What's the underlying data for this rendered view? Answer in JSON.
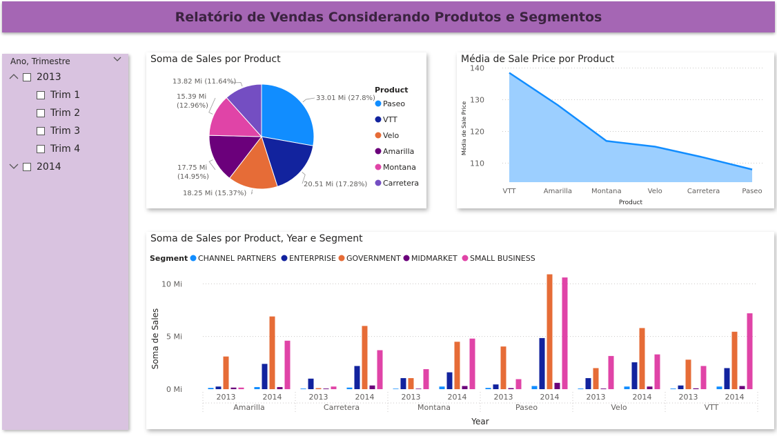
{
  "header": {
    "title": "Relatório de Vendas Considerando Produtos e Segmentos"
  },
  "slicer": {
    "title": "Ano, Trimestre",
    "years": [
      {
        "label": "2013",
        "expanded": true,
        "quarters": [
          "Trim 1",
          "Trim 2",
          "Trim 3",
          "Trim 4"
        ]
      },
      {
        "label": "2014",
        "expanded": false,
        "quarters": []
      }
    ]
  },
  "pie": {
    "title": "Soma de Sales por Product",
    "legend_title": "Product",
    "labels": [
      "33.01 Mi (27.8%)",
      "20.51 Mi (17.28%)",
      "18.25 Mi (15.37%)",
      "17.75 Mi (14.95%)",
      "15.39 Mi (12.96%)",
      "13.82 Mi (11.64%)"
    ]
  },
  "line": {
    "title": "Média de Sale Price por Product"
  },
  "bar": {
    "title": "Soma de Sales por Product, Year e Segment",
    "legend_title": "Segment"
  },
  "chart_data": [
    {
      "type": "pie",
      "title": "Soma de Sales por Product",
      "legend_title": "Product",
      "categories": [
        "Paseo",
        "VTT",
        "Velo",
        "Amarilla",
        "Montana",
        "Carretera"
      ],
      "values": [
        33.01,
        20.51,
        18.25,
        17.75,
        15.39,
        13.82
      ],
      "percentages": [
        27.8,
        17.28,
        15.37,
        14.95,
        12.96,
        11.64
      ],
      "unit": "Mi",
      "colors": [
        "#118dff",
        "#12239e",
        "#e66c37",
        "#6b007b",
        "#e044a7",
        "#744ec2"
      ],
      "legend_position": "right"
    },
    {
      "type": "area",
      "title": "Média de Sale Price por Product",
      "xlabel": "Product",
      "ylabel": "Média de Sale Price",
      "categories": [
        "VTT",
        "Amarilla",
        "Montana",
        "Velo",
        "Carretera",
        "Paseo"
      ],
      "values": [
        138.5,
        128.3,
        117.0,
        115.2,
        111.8,
        108.0
      ],
      "ylim": [
        104,
        141
      ],
      "yticks": [
        110,
        120,
        130,
        140
      ],
      "grid": true,
      "color": "#118dff"
    },
    {
      "type": "bar",
      "title": "Soma de Sales por Product, Year e Segment",
      "xlabel": "Year",
      "ylabel": "Soma de Sales",
      "legend_title": "Segment",
      "legend_position": "top-left",
      "groups": [
        "Amarilla",
        "Carretera",
        "Montana",
        "Paseo",
        "Velo",
        "VTT"
      ],
      "years": [
        "2013",
        "2014"
      ],
      "ylim": [
        0,
        11
      ],
      "yticks": [
        {
          "v": 0,
          "label": "0 Mi"
        },
        {
          "v": 5,
          "label": "5 Mi"
        },
        {
          "v": 10,
          "label": "10 Mi"
        }
      ],
      "grid": true,
      "series": [
        {
          "name": "CHANNEL PARTNERS",
          "color": "#118dff",
          "values": [
            0.12,
            0.2,
            0.06,
            0.15,
            0.05,
            0.25,
            0.12,
            0.3,
            0.06,
            0.25,
            0.06,
            0.25
          ]
        },
        {
          "name": "ENTERPRISE",
          "color": "#12239e",
          "values": [
            0.25,
            2.4,
            1.0,
            2.2,
            1.05,
            1.6,
            0.45,
            4.85,
            1.05,
            2.55,
            0.35,
            2.0
          ]
        },
        {
          "name": "GOVERNMENT",
          "color": "#e66c37",
          "values": [
            3.1,
            6.9,
            0.1,
            6.0,
            1.05,
            4.5,
            4.05,
            10.9,
            2.0,
            5.8,
            2.8,
            5.45
          ]
        },
        {
          "name": "MIDMARKET",
          "color": "#6b007b",
          "values": [
            0.15,
            0.2,
            0.06,
            0.35,
            0.05,
            0.3,
            0.1,
            0.6,
            0.06,
            0.25,
            0.08,
            0.3
          ]
        },
        {
          "name": "SMALL BUSINESS",
          "color": "#e044a7",
          "values": [
            0.15,
            4.6,
            0.25,
            3.7,
            1.9,
            4.8,
            0.95,
            10.6,
            3.15,
            3.3,
            2.2,
            7.2
          ]
        }
      ]
    }
  ]
}
